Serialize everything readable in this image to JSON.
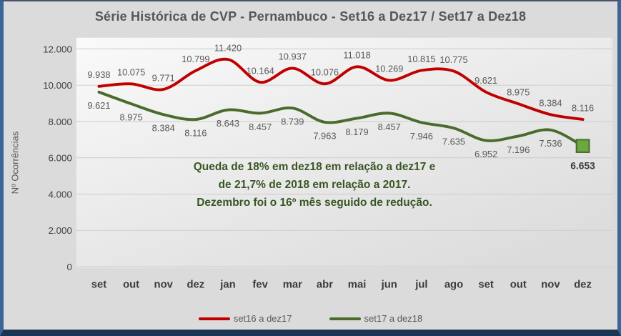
{
  "chart_data": {
    "type": "line",
    "title": "Série Histórica de CVP - Pernambuco - Set16 a Dez17 / Set17 a Dez18",
    "ylabel": "Nº Ocorrências",
    "xlabel": "",
    "ylim": [
      0,
      12000
    ],
    "y_tick_step": 2000,
    "y_tick_labels": [
      "0",
      "2.000",
      "4.000",
      "6.000",
      "8.000",
      "10.000",
      "12.000"
    ],
    "grid": true,
    "legend_position": "bottom",
    "categories": [
      "set",
      "out",
      "nov",
      "dez",
      "jan",
      "fev",
      "mar",
      "abr",
      "mai",
      "jun",
      "jul",
      "ago",
      "set",
      "out",
      "nov",
      "dez"
    ],
    "series": [
      {
        "name": "set16 a dez17",
        "color": "#C00000",
        "values": [
          9938,
          10075,
          9771,
          10799,
          11420,
          10164,
          10937,
          10076,
          11018,
          10269,
          10815,
          10775,
          9621,
          8975,
          8384,
          8116
        ],
        "labels_position": "above"
      },
      {
        "name": "set17 a dez18",
        "color": "#4A6B2C",
        "values": [
          9621,
          8975,
          8384,
          8116,
          8643,
          8457,
          8739,
          7963,
          8179,
          8457,
          7946,
          7635,
          6952,
          7196,
          7536,
          6653
        ],
        "labels_position": "below",
        "last_label_bold": true,
        "last_point_marker": {
          "shape": "square",
          "fill": "#6CA83F",
          "stroke": "#47682B"
        }
      }
    ],
    "annotation": {
      "color": "#375623",
      "lines": [
        "Queda de 18% em dez18 em relação a dez17 e",
        "de 21,7% de 2018 em relação a 2017.",
        "Dezembro foi o 16º mês seguido de redução."
      ]
    }
  },
  "colors": {
    "frame_border_side": "#3A6598",
    "frame_border_bottom": "#1B3655",
    "background": "#DBDBDB",
    "gridline": "#CBCBCB",
    "title_text": "#565656",
    "data_label_text": "#595959"
  }
}
